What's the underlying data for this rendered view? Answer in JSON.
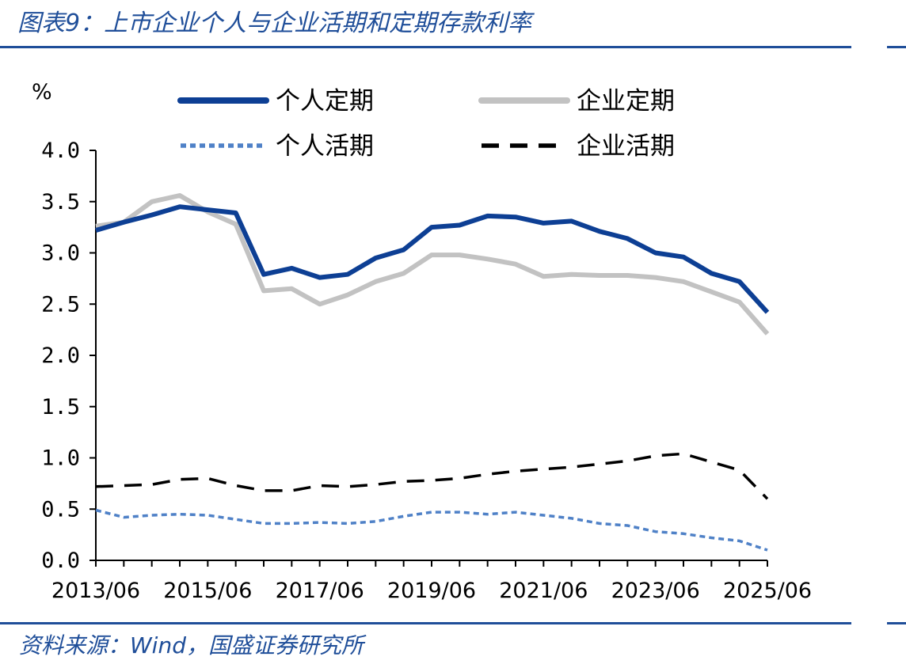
{
  "header": {
    "title": "图表9：上市企业个人与企业活期和定期存款利率"
  },
  "footer": {
    "source": "资料来源：Wind，国盛证券研究所"
  },
  "chart_data": {
    "type": "line",
    "title": "图表9：上市企业个人与企业活期和定期存款利率",
    "ylabel": "%",
    "xlabel": "",
    "ylim": [
      0,
      4.0
    ],
    "yticks": [
      "0.0",
      "0.5",
      "1.0",
      "1.5",
      "2.0",
      "2.5",
      "3.0",
      "3.5",
      "4.0"
    ],
    "xtick_labels": [
      "2013/06",
      "2015/06",
      "2017/06",
      "2019/06",
      "2021/06",
      "2023/06",
      "2025/06"
    ],
    "x": [
      "2013/06",
      "2013/12",
      "2014/06",
      "2014/12",
      "2015/06",
      "2015/12",
      "2016/06",
      "2016/12",
      "2017/06",
      "2017/12",
      "2018/06",
      "2018/12",
      "2019/06",
      "2019/12",
      "2020/06",
      "2020/12",
      "2021/06",
      "2021/12",
      "2022/06",
      "2022/12",
      "2023/06",
      "2023/12",
      "2024/06",
      "2024/12",
      "2025/06"
    ],
    "legend_position": "top",
    "grid": false,
    "series": [
      {
        "name": "个人定期",
        "color": "#0D3F94",
        "style": "solid-thick",
        "values": [
          3.22,
          3.3,
          3.37,
          3.45,
          3.42,
          3.39,
          2.79,
          2.85,
          2.76,
          2.79,
          2.95,
          3.03,
          3.25,
          3.27,
          3.36,
          3.35,
          3.29,
          3.31,
          3.21,
          3.14,
          3.0,
          2.96,
          2.8,
          2.72,
          2.42
        ]
      },
      {
        "name": "企业定期",
        "color": "#C2C2C2",
        "style": "solid-thick",
        "values": [
          3.26,
          3.3,
          3.5,
          3.56,
          3.4,
          3.28,
          2.63,
          2.65,
          2.5,
          2.59,
          2.72,
          2.8,
          2.98,
          2.98,
          2.94,
          2.89,
          2.77,
          2.79,
          2.78,
          2.78,
          2.76,
          2.72,
          2.62,
          2.52,
          2.21
        ]
      },
      {
        "name": "个人活期",
        "color": "#4F81C7",
        "style": "dotted",
        "values": [
          0.49,
          0.42,
          0.44,
          0.45,
          0.44,
          0.4,
          0.36,
          0.36,
          0.37,
          0.36,
          0.38,
          0.43,
          0.47,
          0.47,
          0.45,
          0.47,
          0.44,
          0.41,
          0.36,
          0.34,
          0.28,
          0.26,
          0.22,
          0.19,
          0.1
        ]
      },
      {
        "name": "企业活期",
        "color": "#000000",
        "style": "dashed",
        "values": [
          0.72,
          0.73,
          0.74,
          0.79,
          0.8,
          0.73,
          0.68,
          0.68,
          0.73,
          0.72,
          0.74,
          0.77,
          0.78,
          0.8,
          0.84,
          0.87,
          0.89,
          0.91,
          0.94,
          0.97,
          1.02,
          1.04,
          0.96,
          0.88,
          0.6
        ]
      }
    ]
  }
}
